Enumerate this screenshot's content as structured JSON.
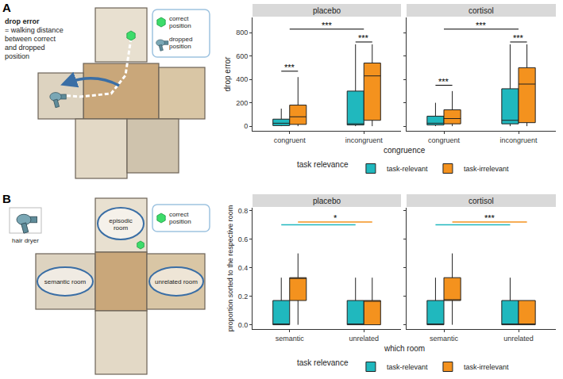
{
  "chart_data": [
    {
      "type": "box",
      "label": "A",
      "x_label": "congruence",
      "y_label": "drop error",
      "categories": [
        "congruent",
        "incongruent"
      ],
      "ylim": [
        -40,
        930
      ],
      "yticks": [
        0,
        200,
        400,
        600,
        800
      ],
      "grid": false,
      "legend": "bottom",
      "legend_title": "task relevance",
      "panels": [
        {
          "title": "placebo",
          "series": [
            {
              "name": "task-relevant",
              "color": "#20B8BE",
              "lowerfence": [
                0,
                0
              ],
              "q1": [
                5,
                10
              ],
              "median": [
                25,
                20
              ],
              "q3": [
                60,
                300
              ],
              "upperfence": [
                150,
                700
              ]
            },
            {
              "name": "task-irrelevant",
              "color": "#F4921E",
              "lowerfence": [
                0,
                0
              ],
              "q1": [
                15,
                50
              ],
              "median": [
                80,
                430
              ],
              "q3": [
                180,
                540
              ],
              "upperfence": [
                420,
                700
              ]
            }
          ],
          "significance": [
            {
              "x0": "congruent",
              "s0": "task-relevant",
              "x1": "congruent",
              "s1": "task-irrelevant",
              "y": 470,
              "text": "***"
            },
            {
              "x0": "incongruent",
              "s0": "task-relevant",
              "x1": "incongruent",
              "s1": "task-irrelevant",
              "y": 720,
              "text": "***"
            },
            {
              "x0": "congruent",
              "x1": "incongruent",
              "y": 830,
              "text": "***"
            }
          ]
        },
        {
          "title": "cortisol",
          "series": [
            {
              "name": "task-relevant",
              "color": "#20B8BE",
              "lowerfence": [
                0,
                0
              ],
              "q1": [
                10,
                20
              ],
              "median": [
                25,
                50
              ],
              "q3": [
                85,
                320
              ],
              "upperfence": [
                200,
                700
              ]
            },
            {
              "name": "task-irrelevant",
              "color": "#F4921E",
              "lowerfence": [
                0,
                0
              ],
              "q1": [
                20,
                30
              ],
              "median": [
                65,
                360
              ],
              "q3": [
                140,
                500
              ],
              "upperfence": [
                300,
                700
              ]
            }
          ],
          "significance": [
            {
              "x0": "congruent",
              "s0": "task-relevant",
              "x1": "congruent",
              "s1": "task-irrelevant",
              "y": 350,
              "text": "***"
            },
            {
              "x0": "incongruent",
              "s0": "task-relevant",
              "x1": "incongruent",
              "s1": "task-irrelevant",
              "y": 720,
              "text": "***"
            },
            {
              "x0": "congruent",
              "x1": "incongruent",
              "y": 830,
              "text": "***"
            }
          ]
        }
      ]
    },
    {
      "type": "box",
      "label": "B",
      "x_label": "which room",
      "y_label": "proportion sorted to the respective room",
      "categories": [
        "semantic",
        "unrelated"
      ],
      "ylim": [
        -0.03,
        0.82
      ],
      "yticks": [
        {
          "value": 0,
          "label": "0.0"
        },
        0.2,
        0.4,
        0.6,
        0.8
      ],
      "grid": false,
      "legend": "bottom",
      "legend_title": "task relevance",
      "panels": [
        {
          "title": "placebo",
          "series": [
            {
              "name": "task-relevant",
              "color": "#20B8BE",
              "lowerfence": [
                0,
                0
              ],
              "q1": [
                0,
                0
              ],
              "median": [
                0,
                0
              ],
              "q3": [
                0.17,
                0.17
              ],
              "upperfence": [
                0.33,
                0.33
              ]
            },
            {
              "name": "task-irrelevant",
              "color": "#F4921E",
              "lowerfence": [
                0,
                0
              ],
              "q1": [
                0.17,
                0
              ],
              "median": [
                0.33,
                0.17
              ],
              "q3": [
                0.33,
                0.17
              ],
              "upperfence": [
                0.5,
                0.33
              ]
            }
          ],
          "significance": [
            {
              "x0": "semantic",
              "s0": "task-relevant",
              "x1": "unrelated",
              "s1": "task-relevant",
              "y": 0.7,
              "color": "#20B8BE"
            },
            {
              "x0": "semantic",
              "s0": "task-irrelevant",
              "x1": "unrelated",
              "s1": "task-irrelevant",
              "y": 0.72,
              "color": "#F4921E",
              "text": "*"
            }
          ]
        },
        {
          "title": "cortisol",
          "series": [
            {
              "name": "task-relevant",
              "color": "#20B8BE",
              "lowerfence": [
                0,
                0
              ],
              "q1": [
                0,
                0
              ],
              "median": [
                0,
                0
              ],
              "q3": [
                0.17,
                0.17
              ],
              "upperfence": [
                0.33,
                0.33
              ]
            },
            {
              "name": "task-irrelevant",
              "color": "#F4921E",
              "lowerfence": [
                0,
                0
              ],
              "q1": [
                0.17,
                0
              ],
              "median": [
                0.17,
                0
              ],
              "q3": [
                0.33,
                0.17
              ],
              "upperfence": [
                0.5,
                0.17
              ]
            }
          ],
          "significance": [
            {
              "x0": "semantic",
              "s0": "task-relevant",
              "x1": "unrelated",
              "s1": "task-relevant",
              "y": 0.7,
              "color": "#20B8BE"
            },
            {
              "x0": "semantic",
              "s0": "task-irrelevant",
              "x1": "unrelated",
              "s1": "task-irrelevant",
              "y": 0.72,
              "color": "#F4921E",
              "text": "***"
            }
          ]
        }
      ]
    }
  ],
  "schematic": {
    "A": {
      "term": "drop error",
      "definition": "= walking distance between correct and dropped position",
      "key": [
        "correct position",
        "dropped position"
      ]
    },
    "B": {
      "object": "hair dryer",
      "rooms": [
        "episodic room",
        "semantic room",
        "unrelated room"
      ],
      "key": [
        "correct position"
      ]
    }
  }
}
